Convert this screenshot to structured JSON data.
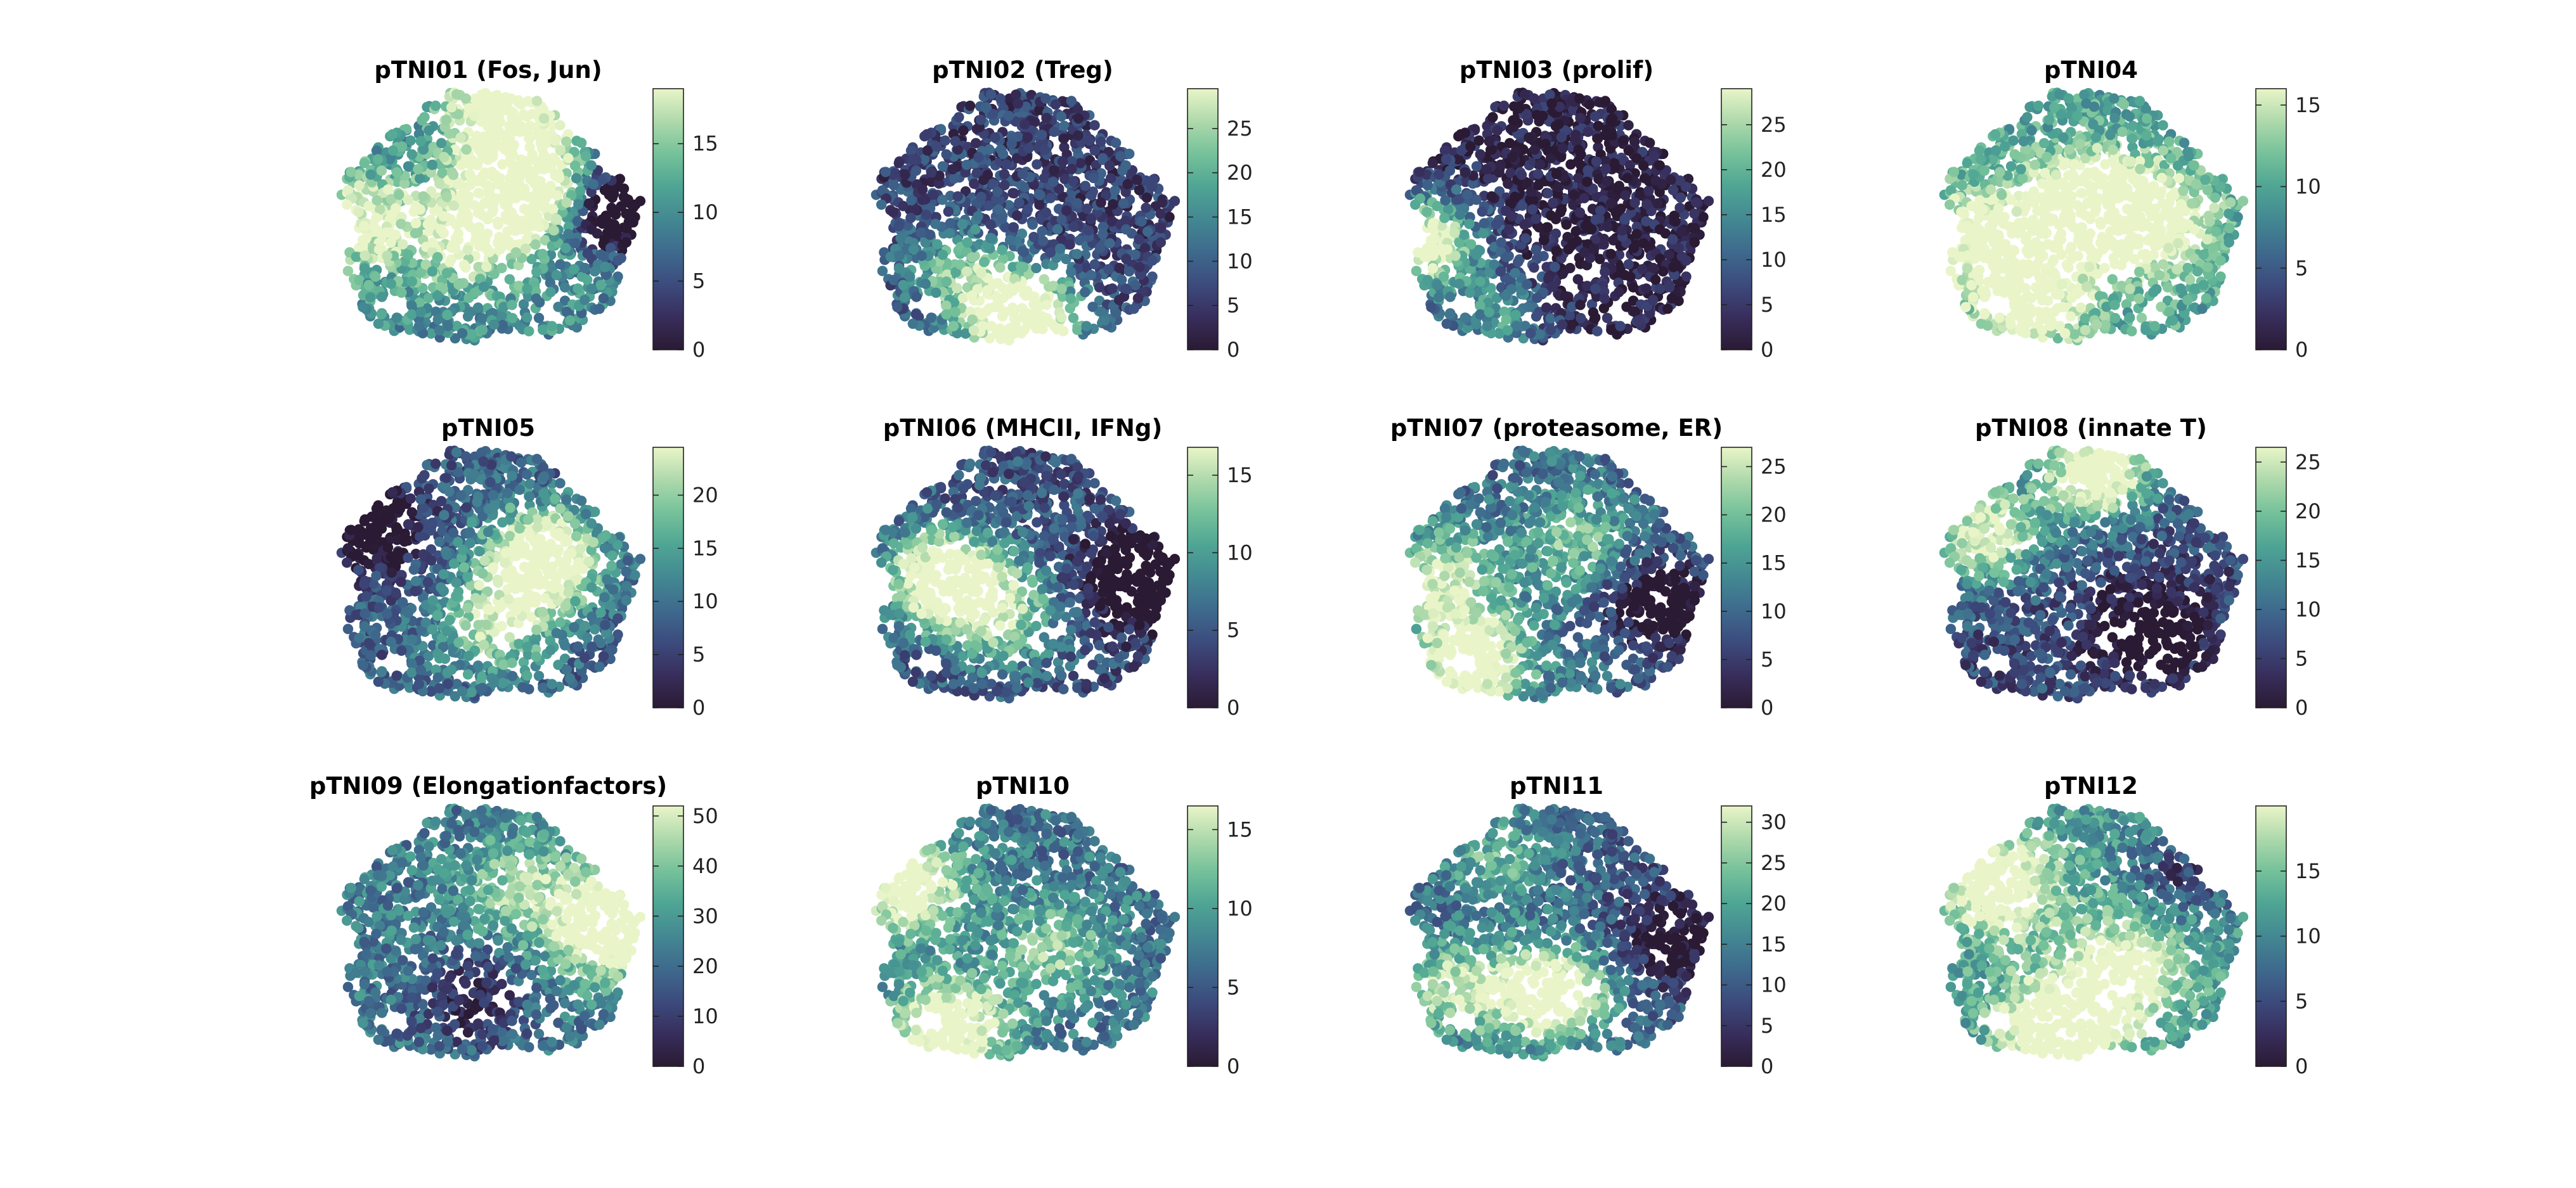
{
  "figure": {
    "colormap": [
      "#2a1a33",
      "#382e5c",
      "#3c4b7d",
      "#3e6a8d",
      "#438892",
      "#4fa594",
      "#75c19a",
      "#aed9ab",
      "#e9f5c8"
    ]
  },
  "chart_data": [
    {
      "type": "scatter",
      "title": "pTNI01 (Fos, Jun)",
      "colorbar": {
        "ticks": [
          "0",
          "5",
          "10",
          "15"
        ],
        "tick_values": [
          0,
          5,
          10,
          15
        ],
        "range": [
          0,
          19
        ]
      },
      "hotspots": [
        [
          0.62,
          0.35,
          1.0
        ],
        [
          0.46,
          0.55,
          0.6
        ],
        [
          0.55,
          0.08,
          0.7
        ],
        [
          0.1,
          0.5,
          0.55
        ]
      ],
      "base": 0.52,
      "cold": [
        [
          0.93,
          0.45,
          0.9
        ]
      ]
    },
    {
      "type": "scatter",
      "title": "pTNI02 (Treg)",
      "colorbar": {
        "ticks": [
          "0",
          "5",
          "10",
          "15",
          "20",
          "25"
        ],
        "tick_values": [
          0,
          5,
          10,
          15,
          20,
          25
        ],
        "range": [
          0,
          29.5
        ]
      },
      "hotspots": [
        [
          0.5,
          0.88,
          1.2
        ],
        [
          0.28,
          0.7,
          0.5
        ]
      ],
      "base": 0.2,
      "cold": []
    },
    {
      "type": "scatter",
      "title": "pTNI03 (prolif)",
      "colorbar": {
        "ticks": [
          "0",
          "5",
          "10",
          "15",
          "20",
          "25"
        ],
        "tick_values": [
          0,
          5,
          10,
          15,
          20,
          25
        ],
        "range": [
          0,
          29
        ]
      },
      "hotspots": [
        [
          0.06,
          0.58,
          1.1
        ],
        [
          0.3,
          0.88,
          0.5
        ]
      ],
      "base": 0.06,
      "cold": []
    },
    {
      "type": "scatter",
      "title": "pTNI04",
      "colorbar": {
        "ticks": [
          "0",
          "5",
          "10",
          "15"
        ],
        "tick_values": [
          0,
          5,
          10,
          15
        ],
        "range": [
          0,
          16
        ]
      },
      "hotspots": [
        [
          0.5,
          0.45,
          0.9
        ],
        [
          0.7,
          0.5,
          0.6
        ],
        [
          0.3,
          0.8,
          0.6
        ],
        [
          0.15,
          0.55,
          0.5
        ]
      ],
      "base": 0.62,
      "cold": []
    },
    {
      "type": "scatter",
      "title": "pTNI05",
      "colorbar": {
        "ticks": [
          "0",
          "5",
          "10",
          "15",
          "20"
        ],
        "tick_values": [
          0,
          5,
          10,
          15,
          20
        ],
        "range": [
          0,
          24.5
        ]
      },
      "hotspots": [
        [
          0.68,
          0.42,
          1.1
        ],
        [
          0.52,
          0.68,
          0.6
        ]
      ],
      "base": 0.32,
      "cold": [
        [
          0.12,
          0.3,
          0.5
        ]
      ]
    },
    {
      "type": "scatter",
      "title": "pTNI06 (MHCII, IFNg)",
      "colorbar": {
        "ticks": [
          "0",
          "5",
          "10",
          "15"
        ],
        "tick_values": [
          0,
          5,
          10,
          15
        ],
        "range": [
          0,
          16.8
        ]
      },
      "hotspots": [
        [
          0.25,
          0.5,
          1.1
        ],
        [
          0.45,
          0.65,
          0.5
        ]
      ],
      "base": 0.28,
      "cold": [
        [
          0.88,
          0.5,
          0.7
        ]
      ]
    },
    {
      "type": "scatter",
      "title": "pTNI07 (proteasome, ER)",
      "colorbar": {
        "ticks": [
          "0",
          "5",
          "10",
          "15",
          "20",
          "25"
        ],
        "tick_values": [
          0,
          5,
          10,
          15,
          20,
          25
        ],
        "range": [
          0,
          27
        ]
      },
      "hotspots": [
        [
          0.22,
          0.82,
          0.9
        ],
        [
          0.12,
          0.5,
          0.6
        ],
        [
          0.55,
          0.35,
          0.4
        ]
      ],
      "base": 0.38,
      "cold": [
        [
          0.85,
          0.6,
          0.6
        ]
      ]
    },
    {
      "type": "scatter",
      "title": "pTNI08 (innate T)",
      "colorbar": {
        "ticks": [
          "0",
          "5",
          "10",
          "15",
          "20",
          "25"
        ],
        "tick_values": [
          0,
          5,
          10,
          15,
          20,
          25
        ],
        "range": [
          0,
          26.5
        ]
      },
      "hotspots": [
        [
          0.52,
          0.08,
          1.0
        ],
        [
          0.15,
          0.32,
          0.8
        ]
      ],
      "base": 0.25,
      "cold": [
        [
          0.7,
          0.7,
          0.5
        ]
      ]
    },
    {
      "type": "scatter",
      "title": "pTNI09 (Elongationfactors)",
      "colorbar": {
        "ticks": [
          "0",
          "10",
          "20",
          "30",
          "40",
          "50"
        ],
        "tick_values": [
          0,
          10,
          20,
          30,
          40,
          50
        ],
        "range": [
          0,
          52
        ]
      },
      "hotspots": [
        [
          0.9,
          0.45,
          1.0
        ],
        [
          0.6,
          0.3,
          0.4
        ]
      ],
      "base": 0.45,
      "cold": [
        [
          0.45,
          0.75,
          0.4
        ]
      ]
    },
    {
      "type": "scatter",
      "title": "pTNI10",
      "colorbar": {
        "ticks": [
          "0",
          "5",
          "10",
          "15"
        ],
        "tick_values": [
          0,
          5,
          10,
          15
        ],
        "range": [
          0,
          16.5
        ]
      },
      "hotspots": [
        [
          0.12,
          0.3,
          0.8
        ],
        [
          0.25,
          0.85,
          0.9
        ],
        [
          0.6,
          0.55,
          0.4
        ]
      ],
      "base": 0.42,
      "cold": []
    },
    {
      "type": "scatter",
      "title": "pTNI11",
      "colorbar": {
        "ticks": [
          "0",
          "5",
          "10",
          "15",
          "20",
          "25",
          "30"
        ],
        "tick_values": [
          0,
          5,
          10,
          15,
          20,
          25,
          30
        ],
        "range": [
          0,
          32
        ]
      },
      "hotspots": [
        [
          0.48,
          0.72,
          1.0
        ],
        [
          0.15,
          0.7,
          0.6
        ],
        [
          0.3,
          0.2,
          0.4
        ]
      ],
      "base": 0.32,
      "cold": [
        [
          0.9,
          0.5,
          0.4
        ]
      ]
    },
    {
      "type": "scatter",
      "title": "pTNI12",
      "colorbar": {
        "ticks": [
          "0",
          "5",
          "10",
          "15"
        ],
        "tick_values": [
          0,
          5,
          10,
          15
        ],
        "range": [
          0,
          20
        ]
      },
      "hotspots": [
        [
          0.4,
          0.85,
          0.9
        ],
        [
          0.2,
          0.3,
          0.7
        ],
        [
          0.62,
          0.62,
          0.6
        ]
      ],
      "base": 0.58,
      "cold": [
        [
          0.82,
          0.25,
          0.4
        ]
      ]
    }
  ]
}
